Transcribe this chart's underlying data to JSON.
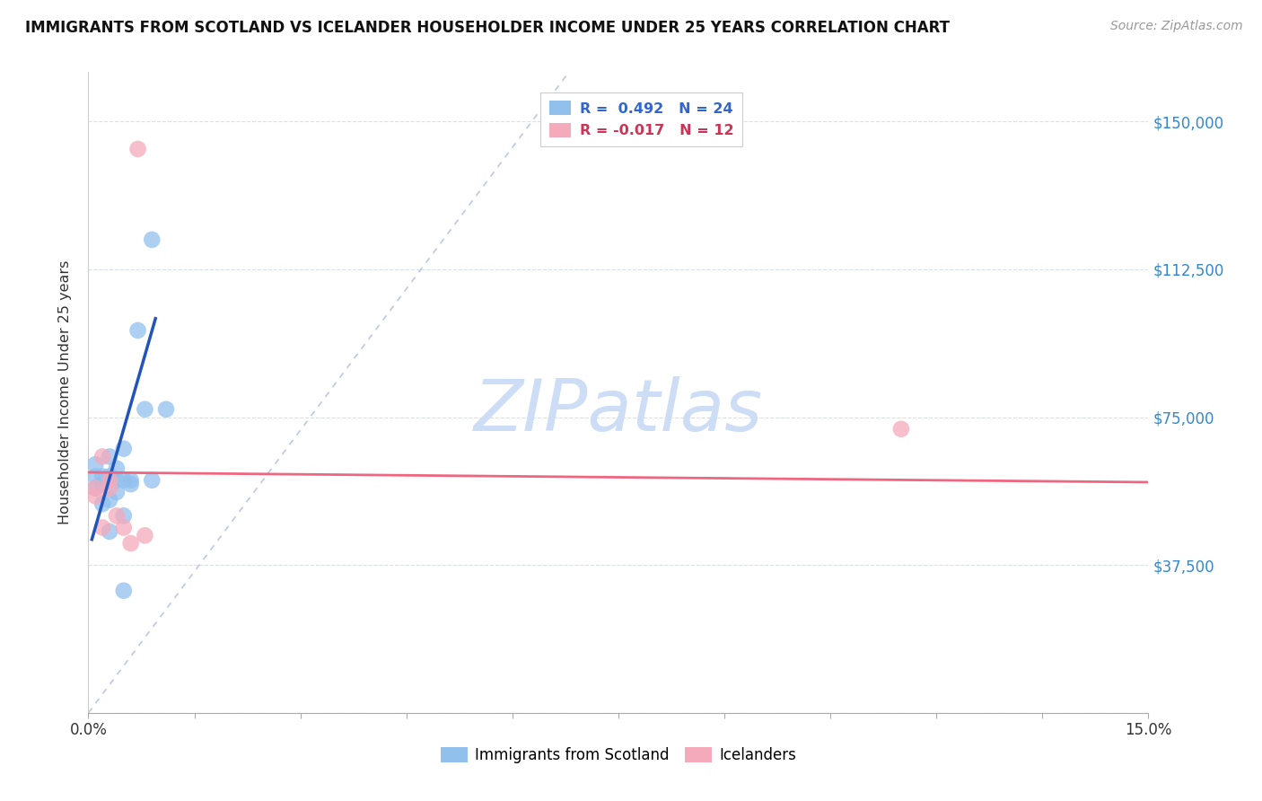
{
  "title": "IMMIGRANTS FROM SCOTLAND VS ICELANDER HOUSEHOLDER INCOME UNDER 25 YEARS CORRELATION CHART",
  "source": "Source: ZipAtlas.com",
  "ylabel": "Householder Income Under 25 years",
  "yticks": [
    0,
    37500,
    75000,
    112500,
    150000
  ],
  "ytick_labels": [
    "",
    "$37,500",
    "$75,000",
    "$112,500",
    "$150,000"
  ],
  "xlim": [
    0.0,
    0.15
  ],
  "ylim": [
    0,
    162500
  ],
  "legend_blue_r": "R =  0.492",
  "legend_blue_n": "N = 24",
  "legend_pink_r": "R = -0.017",
  "legend_pink_n": "N = 12",
  "legend_label_blue": "Immigrants from Scotland",
  "legend_label_pink": "Icelanders",
  "blue_color": "#92c0ed",
  "pink_color": "#f5aabb",
  "blue_line_color": "#2255bb",
  "pink_line_color": "#ee6680",
  "diag_line_color": "#aabbdd",
  "watermark_color": "#ccddf5",
  "blue_points_x": [
    0.001,
    0.001,
    0.001,
    0.002,
    0.002,
    0.002,
    0.003,
    0.003,
    0.003,
    0.003,
    0.004,
    0.004,
    0.004,
    0.005,
    0.005,
    0.005,
    0.005,
    0.006,
    0.006,
    0.007,
    0.008,
    0.009,
    0.009,
    0.011
  ],
  "blue_points_y": [
    57000,
    60000,
    63000,
    53000,
    58000,
    60000,
    46000,
    54000,
    60000,
    65000,
    56000,
    59000,
    62000,
    50000,
    59000,
    67000,
    31000,
    59000,
    58000,
    97000,
    77000,
    59000,
    120000,
    77000
  ],
  "pink_points_x": [
    0.001,
    0.001,
    0.002,
    0.002,
    0.003,
    0.003,
    0.004,
    0.005,
    0.006,
    0.007,
    0.008,
    0.115
  ],
  "pink_points_y": [
    55000,
    57000,
    47000,
    65000,
    57000,
    59000,
    50000,
    47000,
    43000,
    143000,
    45000,
    72000
  ],
  "blue_line_x": [
    0.0005,
    0.0095
  ],
  "blue_line_y": [
    44000,
    100000
  ],
  "pink_line_x": [
    0.0,
    0.15
  ],
  "pink_line_y": [
    61000,
    58500
  ],
  "diag_line_x": [
    0.0,
    0.068
  ],
  "diag_line_y": [
    0,
    162500
  ]
}
